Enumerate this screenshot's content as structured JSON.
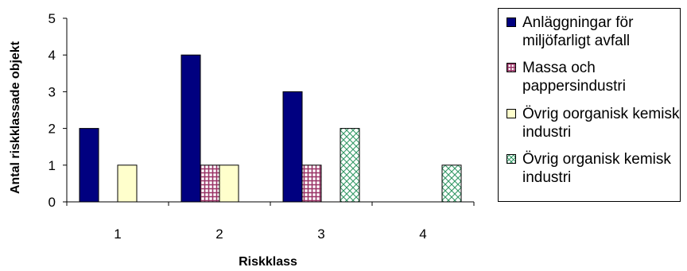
{
  "chart_data": {
    "type": "bar",
    "categories": [
      "1",
      "2",
      "3",
      "4"
    ],
    "series": [
      {
        "name": "Anläggningar för miljöfarligt avfall",
        "values": [
          2,
          4,
          3,
          0
        ]
      },
      {
        "name": "Massa och pappersindustri",
        "values": [
          0,
          1,
          1,
          0
        ]
      },
      {
        "name": "Övrig oorganisk kemisk industri",
        "values": [
          1,
          1,
          0,
          0
        ]
      },
      {
        "name": "Övrig organisk kemisk industri",
        "values": [
          0,
          0,
          2,
          1
        ]
      }
    ],
    "title": "",
    "xlabel": "Riskklass",
    "ylabel": "Antal riskklassade objekt",
    "ylim": [
      0,
      5
    ],
    "yticks": [
      "0",
      "1",
      "2",
      "3",
      "4",
      "5"
    ],
    "grid": false,
    "legend_position": "right",
    "colors": [
      "#000080",
      "#993366",
      "#ffffcc",
      "#339966"
    ]
  }
}
